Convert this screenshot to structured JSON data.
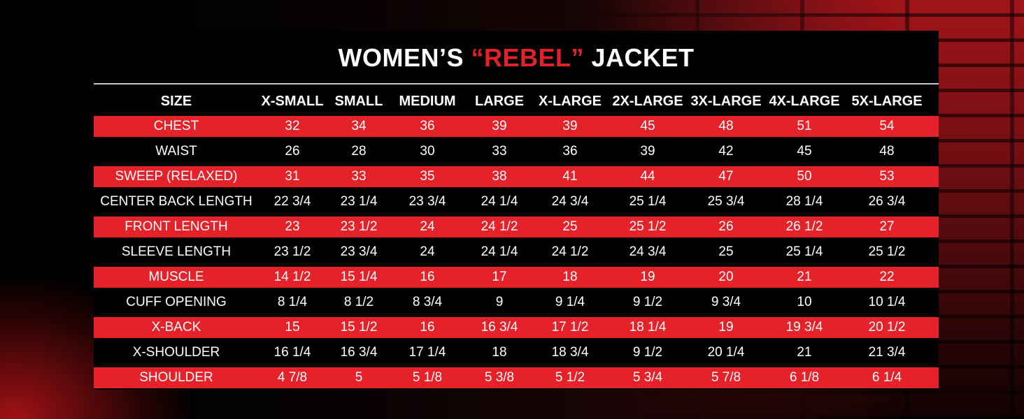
{
  "title": {
    "prefix": "WOMEN’S ",
    "highlight": "“REBEL”",
    "suffix": " JACKET"
  },
  "colors": {
    "accent_red": "#e52129",
    "background": "#000000",
    "text": "#ffffff"
  },
  "table": {
    "headers": [
      "SIZE",
      "X-SMALL",
      "SMALL",
      "MEDIUM",
      "LARGE",
      "X-LARGE",
      "2X-LARGE",
      "3X-LARGE",
      "4X-LARGE",
      "5X-LARGE"
    ],
    "rows": [
      [
        "CHEST",
        "32",
        "34",
        "36",
        "39",
        "39",
        "45",
        "48",
        "51",
        "54"
      ],
      [
        "WAIST",
        "26",
        "28",
        "30",
        "33",
        "36",
        "39",
        "42",
        "45",
        "48"
      ],
      [
        "SWEEP (RELAXED)",
        "31",
        "33",
        "35",
        "38",
        "41",
        "44",
        "47",
        "50",
        "53"
      ],
      [
        "CENTER BACK LENGTH",
        "22 3/4",
        "23 1/4",
        "23 3/4",
        "24 1/4",
        "24 3/4",
        "25 1/4",
        "25 3/4",
        "28 1/4",
        "26 3/4"
      ],
      [
        "FRONT LENGTH",
        "23",
        "23 1/2",
        "24",
        "24 1/2",
        "25",
        "25 1/2",
        "26",
        "26 1/2",
        "27"
      ],
      [
        "SLEEVE LENGTH",
        "23 1/2",
        "23 3/4",
        "24",
        "24 1/4",
        "24 1/2",
        "24 3/4",
        "25",
        "25 1/4",
        "25 1/2"
      ],
      [
        "MUSCLE",
        "14 1/2",
        "15 1/4",
        "16",
        "17",
        "18",
        "19",
        "20",
        "21",
        "22"
      ],
      [
        "CUFF OPENING",
        "8 1/4",
        "8 1/2",
        "8 3/4",
        "9",
        "9 1/4",
        "9 1/2",
        "9 3/4",
        "10",
        "10 1/4"
      ],
      [
        "X-BACK",
        "15",
        "15 1/2",
        "16",
        "16 3/4",
        "17 1/2",
        "18 1/4",
        "19",
        "19 3/4",
        "20 1/2"
      ],
      [
        "X-SHOULDER",
        "16 1/4",
        "16 3/4",
        "17 1/4",
        "18",
        "18 3/4",
        "9 1/2",
        "20 1/4",
        "21",
        "21 3/4"
      ],
      [
        "SHOULDER",
        "4 7/8",
        "5",
        "5 1/8",
        "5 3/8",
        "5 1/2",
        "5 3/4",
        "5 7/8",
        "6 1/8",
        "6 1/4"
      ]
    ]
  }
}
